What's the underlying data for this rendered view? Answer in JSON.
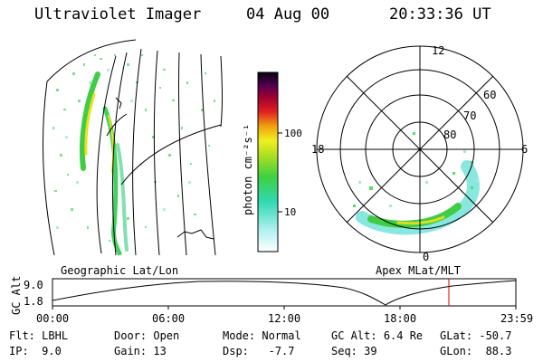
{
  "header": {
    "instrument": "Ultraviolet Imager",
    "date": "04 Aug 00",
    "time": "20:33:36 UT"
  },
  "colorbar": {
    "unit_label": "photon cm⁻²s⁻¹",
    "ticks": [
      "100",
      "10"
    ]
  },
  "polar": {
    "mlt_labels": [
      "12",
      "18",
      "6",
      "0"
    ],
    "mlat_labels": [
      "60",
      "70",
      "80"
    ]
  },
  "panel_labels": {
    "left": "Geographic Lat/Lon",
    "right": "Apex MLat/MLT"
  },
  "altitude_plot": {
    "axis_title": "GC Alt",
    "ytick_top": "9.0",
    "ytick_bottom": "1.8",
    "xticks": [
      "00:00",
      "06:00",
      "12:00",
      "18:00",
      "23:59"
    ]
  },
  "footer": {
    "flt_label": "Flt:",
    "flt_value": "LBHL",
    "ip_label": "IP:",
    "ip_value": "9.0",
    "door_label": "Door:",
    "door_value": "Open",
    "gain_label": "Gain:",
    "gain_value": "13",
    "mode_label": "Mode:",
    "mode_value": "Normal",
    "dsp_label": "Dsp:",
    "dsp_value": "-7.7",
    "gcalt_label": "GC Alt:",
    "gcalt_value": "6.4 Re",
    "seq_label": "Seq:",
    "seq_value": "39",
    "glat_label": "GLat:",
    "glat_value": "-50.7",
    "glon_label": "GLon:",
    "glon_value": "88.3"
  },
  "colors": {
    "current_time_marker": "#dd0000",
    "aurora_dense": "#22cc33",
    "aurora_mid": "#55dd66",
    "aurora_faint": "#88e8e0",
    "aurora_peak": "#f0e020"
  }
}
